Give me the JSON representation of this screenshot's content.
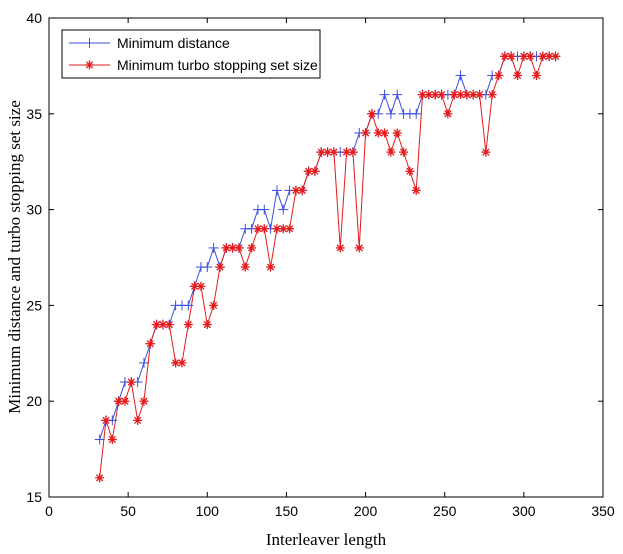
{
  "chart_data": {
    "type": "line",
    "title": "",
    "xlabel": "Interleaver length",
    "ylabel": "Minimum distance and turbo stopping set size",
    "xlim": [
      0,
      350
    ],
    "ylim": [
      15,
      40
    ],
    "xticks": [
      "0",
      "50",
      "100",
      "150",
      "200",
      "250",
      "300",
      "350"
    ],
    "yticks": [
      "15",
      "20",
      "25",
      "30",
      "35",
      "40"
    ],
    "grid": false,
    "legend_position": "top-left",
    "x": [
      32,
      36,
      40,
      44,
      48,
      52,
      56,
      60,
      64,
      68,
      72,
      76,
      80,
      84,
      88,
      92,
      96,
      100,
      104,
      108,
      112,
      116,
      120,
      124,
      128,
      132,
      136,
      140,
      144,
      148,
      152,
      156,
      160,
      164,
      168,
      172,
      176,
      180,
      184,
      188,
      192,
      196,
      200,
      204,
      208,
      212,
      216,
      220,
      224,
      228,
      232,
      236,
      240,
      244,
      248,
      252,
      256,
      260,
      264,
      268,
      272,
      276,
      280,
      284,
      288,
      292,
      296,
      300,
      304,
      308,
      312,
      316,
      320
    ],
    "series": [
      {
        "name": "Minimum distance",
        "color": "#3b4fe0",
        "marker": "+",
        "values": [
          18,
          19,
          19,
          20,
          21,
          21,
          21,
          22,
          23,
          24,
          24,
          24,
          25,
          25,
          25,
          26,
          27,
          27,
          28,
          27,
          28,
          28,
          28,
          29,
          29,
          30,
          30,
          29,
          31,
          30,
          31,
          31,
          31,
          32,
          32,
          33,
          33,
          33,
          33,
          33,
          33,
          34,
          34,
          35,
          35,
          36,
          35,
          36,
          35,
          35,
          35,
          36,
          36,
          36,
          36,
          36,
          36,
          37,
          36,
          36,
          36,
          36,
          37,
          37,
          38,
          38,
          38,
          38,
          38,
          38,
          38,
          38,
          38
        ]
      },
      {
        "name": "Minimum turbo stopping set size",
        "color": "#e41a1c",
        "marker": "*",
        "values": [
          16,
          19,
          18,
          20,
          20,
          21,
          19,
          20,
          23,
          24,
          24,
          24,
          22,
          22,
          24,
          26,
          26,
          24,
          25,
          27,
          28,
          28,
          28,
          27,
          28,
          29,
          29,
          27,
          29,
          29,
          29,
          31,
          31,
          32,
          32,
          33,
          33,
          33,
          28,
          33,
          33,
          28,
          34,
          35,
          34,
          34,
          33,
          34,
          33,
          32,
          31,
          36,
          36,
          36,
          36,
          35,
          36,
          36,
          36,
          36,
          36,
          33,
          36,
          37,
          38,
          38,
          37,
          38,
          38,
          37,
          38,
          38,
          38
        ]
      }
    ]
  }
}
